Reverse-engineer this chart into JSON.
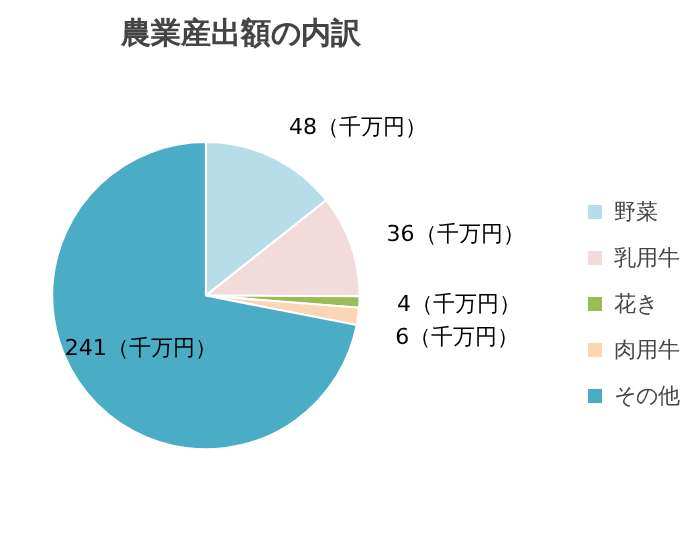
{
  "chart_data": {
    "type": "pie",
    "title": "農業産出額の内訳",
    "categories": [
      "野菜",
      "乳用牛",
      "花き",
      "肉用牛",
      "その他"
    ],
    "values": [
      48,
      36,
      4,
      6,
      241
    ],
    "colors": [
      "#b7dde8",
      "#f2dcdb",
      "#9bbb59",
      "#fcd5b5",
      "#4bacc6"
    ],
    "value_labels": [
      "48（千万円）",
      "36（千万円）",
      "4（千万円）",
      "6（千万円）",
      "241（千万円）"
    ],
    "legend": "right"
  }
}
